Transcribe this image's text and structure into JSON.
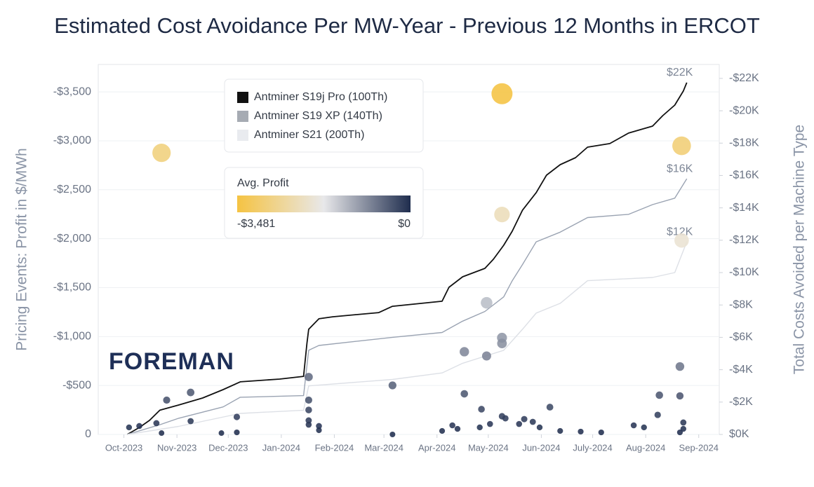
{
  "chart_data": {
    "type": "line",
    "title": "Estimated Cost Avoidance Per MW-Year - Previous 12 Months in ERCOT",
    "ylabel": "Pricing Events: Profit in $/MWh",
    "y2label": "Total Costs Avoided per Machine Type",
    "watermark": "FOREMAN",
    "grid": true,
    "xlim": [
      "2023-09-16",
      "2024-09-13"
    ],
    "xticks": [
      {
        "value": "2023-10-01",
        "label": "Oct-2023"
      },
      {
        "value": "2023-11-01",
        "label": "Nov-2023"
      },
      {
        "value": "2023-12-01",
        "label": "Dec-2023"
      },
      {
        "value": "2024-01-01",
        "label": "Jan-2024"
      },
      {
        "value": "2024-02-01",
        "label": "Feb-2024"
      },
      {
        "value": "2024-03-01",
        "label": "Mar-2024"
      },
      {
        "value": "2024-04-01",
        "label": "Apr-2024"
      },
      {
        "value": "2024-05-01",
        "label": "May-2024"
      },
      {
        "value": "2024-06-01",
        "label": "Jun-2024"
      },
      {
        "value": "2024-07-01",
        "label": "July-2024"
      },
      {
        "value": "2024-08-01",
        "label": "Aug-2024"
      },
      {
        "value": "2024-09-01",
        "label": "Sep-2024"
      }
    ],
    "ylim": [
      0,
      -3780
    ],
    "yticks": [
      0,
      {
        "value": -500,
        "label": "-$500"
      },
      {
        "value": -1000,
        "label": "-$1,000"
      },
      {
        "value": -1500,
        "label": "-$1,500"
      },
      {
        "value": -2000,
        "label": "-$2,000"
      },
      {
        "value": -2500,
        "label": "-$2,500"
      },
      {
        "value": -3000,
        "label": "-$3,000"
      },
      {
        "value": -3500,
        "label": "-$3,500"
      }
    ],
    "y2lim": [
      0,
      -22860
    ],
    "y2ticks": [
      {
        "value": 0,
        "label": "$0K"
      },
      {
        "value": -2000,
        "label": "-$2K"
      },
      {
        "value": -4000,
        "label": "-$4K"
      },
      {
        "value": -6000,
        "label": "-$6K"
      },
      {
        "value": -8000,
        "label": "-$8K"
      },
      {
        "value": -10000,
        "label": "-$10K"
      },
      {
        "value": -12000,
        "label": "-$12K"
      },
      {
        "value": -14000,
        "label": "-$14K"
      },
      {
        "value": -16000,
        "label": "-$16K"
      },
      {
        "value": -18000,
        "label": "-$18K"
      },
      {
        "value": -20000,
        "label": "-$20K"
      },
      {
        "value": -22000,
        "label": "-$22K"
      }
    ],
    "series": [
      {
        "name": "Antminer S19j Pro (100Th)",
        "color": "#111111",
        "axis": "y2",
        "end_label": "$22K",
        "x": [
          "2023-10-03",
          "2023-10-10",
          "2023-10-16",
          "2023-10-22",
          "2023-11-02",
          "2023-11-16",
          "2023-11-28",
          "2023-12-08",
          "2023-12-31",
          "2024-01-14",
          "2024-01-16",
          "2024-01-17",
          "2024-01-23",
          "2024-01-31",
          "2024-02-27",
          "2024-03-06",
          "2024-04-04",
          "2024-04-08",
          "2024-04-16",
          "2024-04-29",
          "2024-05-04",
          "2024-05-10",
          "2024-05-15",
          "2024-05-21",
          "2024-05-29",
          "2024-06-04",
          "2024-06-12",
          "2024-06-21",
          "2024-06-28",
          "2024-07-11",
          "2024-07-22",
          "2024-08-05",
          "2024-08-11",
          "2024-08-18",
          "2024-08-23",
          "2024-08-25"
        ],
        "values": [
          0,
          -430,
          -870,
          -1500,
          -1820,
          -2250,
          -2770,
          -3250,
          -3420,
          -3590,
          -5630,
          -6500,
          -7150,
          -7270,
          -7530,
          -7920,
          -8230,
          -9090,
          -9740,
          -10260,
          -10830,
          -11690,
          -12560,
          -13860,
          -14940,
          -16020,
          -16670,
          -17100,
          -17750,
          -17970,
          -18620,
          -19050,
          -19700,
          -20350,
          -21220,
          -21740
        ]
      },
      {
        "name": "Antminer S19 XP (140Th)",
        "color": "#9aa3b2",
        "axis": "y2",
        "end_label": "$16K",
        "x": [
          "2023-10-03",
          "2023-10-22",
          "2023-11-02",
          "2023-11-28",
          "2023-12-08",
          "2024-01-14",
          "2024-01-17",
          "2024-01-23",
          "2024-03-06",
          "2024-04-04",
          "2024-04-16",
          "2024-04-29",
          "2024-05-10",
          "2024-05-15",
          "2024-05-21",
          "2024-05-29",
          "2024-06-12",
          "2024-06-28",
          "2024-07-22",
          "2024-08-05",
          "2024-08-18",
          "2024-08-25"
        ],
        "values": [
          0,
          -600,
          -1000,
          -1700,
          -2300,
          -2400,
          -5200,
          -5500,
          -6000,
          -6300,
          -7000,
          -7600,
          -8500,
          -9500,
          -10500,
          -11900,
          -12500,
          -13400,
          -13600,
          -14200,
          -14600,
          -15800
        ]
      },
      {
        "name": "Antminer S21 (200Th)",
        "color": "#dde0e6",
        "axis": "y2",
        "end_label": "$12K",
        "x": [
          "2023-10-03",
          "2023-11-02",
          "2023-12-08",
          "2024-01-14",
          "2024-01-17",
          "2024-03-06",
          "2024-04-04",
          "2024-04-16",
          "2024-05-10",
          "2024-05-21",
          "2024-05-29",
          "2024-06-12",
          "2024-06-28",
          "2024-08-05",
          "2024-08-18",
          "2024-08-25"
        ],
        "values": [
          0,
          -500,
          -1300,
          -1500,
          -3000,
          -3400,
          -3800,
          -4400,
          -5200,
          -6500,
          -7500,
          -8100,
          -9500,
          -9700,
          -10000,
          -11900
        ]
      }
    ],
    "points": {
      "type": "scatter",
      "colorscale": [
        "#f5c342",
        "#e8e8ea",
        "#1f2d4e"
      ],
      "colorbar": {
        "title": "Avg. Profit",
        "min": -3481,
        "max": 0,
        "min_label": "-$3,481",
        "max_label": "$0"
      },
      "x": [
        "2023-10-23",
        "2024-05-09",
        "2024-08-22",
        "2024-05-09",
        "2024-08-22",
        "2024-04-30",
        "2024-05-09",
        "2024-05-09",
        "2024-04-17",
        "2024-04-30",
        "2024-08-21",
        "2024-01-17",
        "2024-03-06",
        "2023-11-09",
        "2024-04-17",
        "2023-10-26",
        "2024-01-17",
        "2024-08-09",
        "2024-08-21",
        "2024-04-27",
        "2024-06-06",
        "2024-08-08",
        "2024-05-09",
        "2024-05-11",
        "2024-01-17",
        "2023-11-09",
        "2023-10-20",
        "2023-10-04",
        "2023-10-10",
        "2023-10-23",
        "2023-11-27",
        "2023-12-06",
        "2023-12-06",
        "2024-01-17",
        "2024-01-17",
        "2024-01-23",
        "2024-01-23",
        "2024-03-06",
        "2024-04-04",
        "2024-04-10",
        "2024-04-13",
        "2024-04-26",
        "2024-05-02",
        "2024-05-19",
        "2024-05-22",
        "2024-05-27",
        "2024-05-31",
        "2024-06-12",
        "2024-06-24",
        "2024-07-06",
        "2024-07-25",
        "2024-07-31",
        "2024-08-23",
        "2024-08-23",
        "2024-08-21"
      ],
      "values": [
        -2877,
        -3481,
        -2949,
        -2247,
        -1982,
        -1345,
        -988,
        -930,
        -845,
        -802,
        -694,
        -587,
        -501,
        -429,
        -415,
        -351,
        -351,
        -401,
        -394,
        -258,
        -279,
        -200,
        -186,
        -165,
        -250,
        -136,
        -115,
        -72,
        -86,
        -14,
        -14,
        -179,
        -21,
        -143,
        -100,
        -86,
        -43,
        0,
        -36,
        -93,
        -57,
        -72,
        -107,
        -107,
        -157,
        -129,
        -72,
        -36,
        -29,
        -21,
        -93,
        -72,
        -122,
        -57,
        -21
      ]
    }
  }
}
